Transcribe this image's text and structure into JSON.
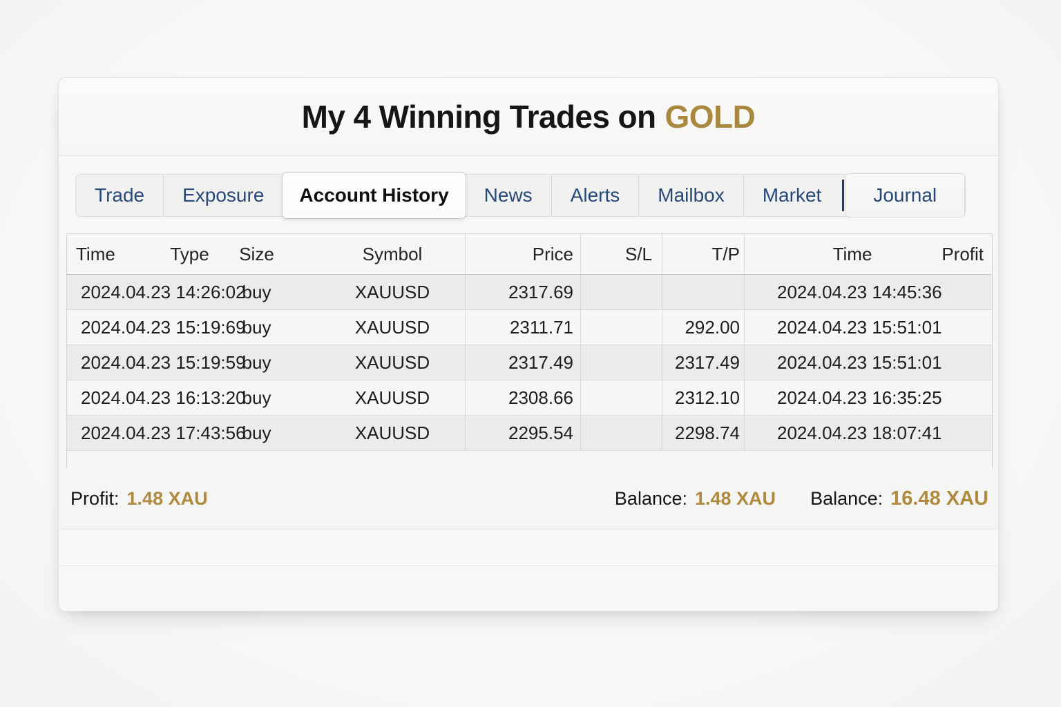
{
  "title": {
    "prefix": "My 4 Winning Trades on",
    "highlight": "GOLD"
  },
  "tabs": [
    {
      "label": "Trade"
    },
    {
      "label": "Exposure"
    },
    {
      "label": "Account History",
      "active": true
    },
    {
      "label": "News"
    },
    {
      "label": "Alerts"
    },
    {
      "label": "Mailbox"
    },
    {
      "label": "Market"
    },
    {
      "label": "Journal",
      "raised": true,
      "divider_before": true
    }
  ],
  "history_table": {
    "headers": [
      {
        "key": "open_time",
        "label": "Time"
      },
      {
        "key": "type",
        "label": "Type"
      },
      {
        "key": "size",
        "label": "Size"
      },
      {
        "key": "symbol",
        "label": "Symbol"
      },
      {
        "key": "price",
        "label": "Price"
      },
      {
        "key": "sl",
        "label": "S/L"
      },
      {
        "key": "tp",
        "label": "T/P"
      },
      {
        "key": "close_time",
        "label": "Time"
      },
      {
        "key": "profit",
        "label": "Profit"
      }
    ],
    "rows": [
      {
        "open_time": "2024.04.23 14:26:02",
        "type": "buy",
        "symbol": "XAUUSD",
        "price": "2317.69",
        "sl": "",
        "tp": "",
        "close_time": "2024.04.23 14:45:36",
        "profit": ""
      },
      {
        "open_time": "2024.04.23 15:19:69",
        "type": "buy",
        "symbol": "XAUUSD",
        "price": "2311.71",
        "sl": "",
        "tp": "292.00",
        "close_time": "2024.04.23 15:51:01",
        "profit": ""
      },
      {
        "open_time": "2024.04.23 15:19:59",
        "type": "buy",
        "symbol": "XAUUSD",
        "price": "2317.49",
        "sl": "",
        "tp": "2317.49",
        "close_time": "2024.04.23 15:51:01",
        "profit": ""
      },
      {
        "open_time": "2024.04.23 16:13:20",
        "type": "buy",
        "symbol": "XAUUSD",
        "price": "2308.66",
        "sl": "",
        "tp": "2312.10",
        "close_time": "2024.04.23 16:35:25",
        "profit": ""
      },
      {
        "open_time": "2024.04.23 17:43:56",
        "type": "buy",
        "symbol": "XAUUSD",
        "price": "2295.54",
        "sl": "",
        "tp": "2298.74",
        "close_time": "2024.04.23 18:07:41",
        "profit": ""
      }
    ]
  },
  "summary": {
    "profit_label": "Profit:",
    "profit_value": "1.48 XAU",
    "balance_label": "Balance:",
    "balance_value": "1.48 XAU",
    "balance2_label": "Balance:",
    "balance2_value": "16.48 XAU"
  },
  "colors": {
    "gold": "#a8893f",
    "tab_text": "#27497a",
    "accent_bar": "#1d3b63"
  }
}
